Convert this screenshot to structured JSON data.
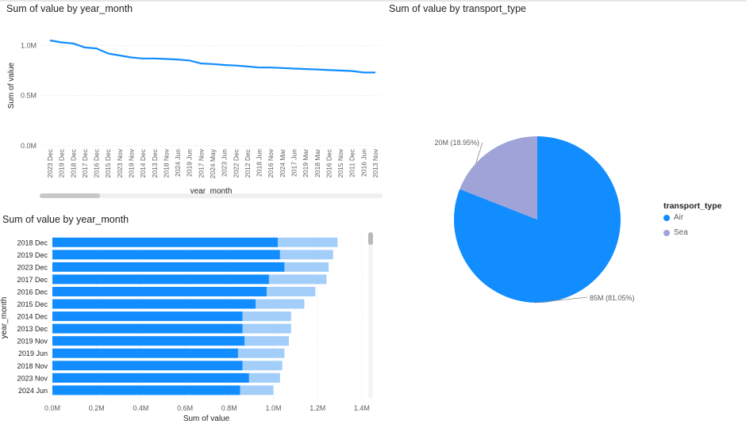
{
  "colors": {
    "primary": "#118dff",
    "secondary": "#a0a3d7",
    "light": "#a3cef9",
    "grid": "#e3e3e3",
    "axis_text": "#605e5c"
  },
  "line_chart": {
    "title": "Sum of value by year_month"
  },
  "bar_chart": {
    "title": "Sum of value by year_month"
  },
  "pie_chart": {
    "title": "Sum of value by transport_type"
  },
  "pie_legend": {
    "title": "transport_type",
    "items": [
      {
        "label": "Air",
        "color": "#118dff"
      },
      {
        "label": "Sea",
        "color": "#a0a3d7"
      }
    ]
  },
  "chart_data": [
    {
      "type": "line",
      "title": "Sum of value by year_month",
      "xlabel": "year_month",
      "ylabel": "Sum of value",
      "y_ticks": [
        "0.0M",
        "0.5M",
        "1.0M"
      ],
      "ylim": [
        0,
        1.2
      ],
      "grid": true,
      "categories": [
        "2023 Dec",
        "2019 Dec",
        "2018 Dec",
        "2017 Dec",
        "2016 Dec",
        "2015 Dec",
        "2023 Nov",
        "2019 Nov",
        "2014 Dec",
        "2013 Dec",
        "2018 Nov",
        "2024 Jun",
        "2019 Jun",
        "2017 Nov",
        "2024 May",
        "2023 Jun",
        "2022 Dec",
        "2012 Dec",
        "2018 Jun",
        "2016 Nov",
        "2024 Mar",
        "2017 Jun",
        "2019 Mar",
        "2018 Mar",
        "2016 Dec",
        "2015 Nov",
        "2011 Dec",
        "2016 Jun",
        "2013 Nov"
      ],
      "series": [
        {
          "values": [
            1.05,
            1.03,
            1.02,
            0.98,
            0.97,
            0.92,
            0.9,
            0.88,
            0.87,
            0.87,
            0.865,
            0.86,
            0.85,
            0.82,
            0.815,
            0.805,
            0.8,
            0.79,
            0.78,
            0.78,
            0.775,
            0.77,
            0.765,
            0.76,
            0.755,
            0.75,
            0.745,
            0.73,
            0.73
          ]
        }
      ]
    },
    {
      "type": "bar",
      "orientation": "horizontal",
      "title": "Sum of value by year_month",
      "xlabel": "Sum of value",
      "ylabel": "year_month",
      "x_ticks": [
        "0.0M",
        "0.2M",
        "0.4M",
        "0.6M",
        "0.8M",
        "1.0M",
        "1.2M",
        "1.4M"
      ],
      "xlim": [
        0,
        1.4
      ],
      "grid": true,
      "categories": [
        "2018 Dec",
        "2019 Dec",
        "2023 Dec",
        "2017 Dec",
        "2016 Dec",
        "2015 Dec",
        "2014 Dec",
        "2013 Dec",
        "2019 Nov",
        "2019 Jun",
        "2018 Nov",
        "2023 Nov",
        "2024 Jun"
      ],
      "series": [
        {
          "values": [
            1.02,
            1.03,
            1.05,
            0.98,
            0.97,
            0.92,
            0.86,
            0.86,
            0.87,
            0.84,
            0.86,
            0.89,
            0.85
          ]
        },
        {
          "values": [
            0.27,
            0.24,
            0.2,
            0.26,
            0.22,
            0.22,
            0.22,
            0.22,
            0.2,
            0.21,
            0.18,
            0.14,
            0.15
          ]
        }
      ]
    },
    {
      "type": "pie",
      "title": "Sum of value by transport_type",
      "legend_title": "transport_type",
      "legend_position": "right",
      "slices": [
        {
          "label": "Air",
          "value": 85,
          "data_label": "85M (81.05%)",
          "color": "#118dff"
        },
        {
          "label": "Sea",
          "value": 20,
          "data_label": "20M (18.95%)",
          "color": "#a0a3d7"
        }
      ]
    }
  ]
}
